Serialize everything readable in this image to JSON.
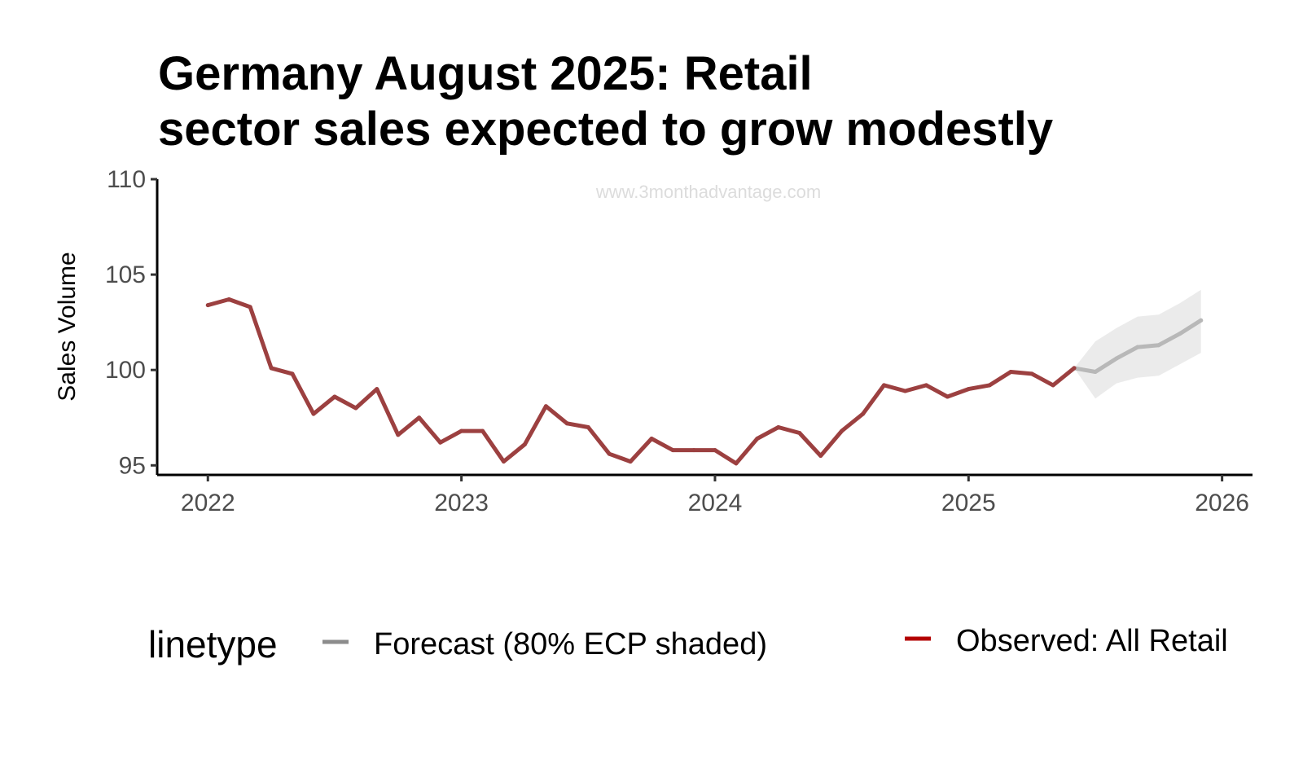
{
  "chart_data": {
    "type": "line",
    "title_lines": [
      "Germany August 2025: Retail",
      "sector sales expected to grow modestly"
    ],
    "ylabel": "Sales Volume",
    "xlabel": "",
    "watermark": "www.3monthadvantage.com",
    "ylim": [
      94.5,
      110
    ],
    "yticks": [
      95,
      100,
      105,
      110
    ],
    "xticks": [
      {
        "label": "2022",
        "value": 2022.0
      },
      {
        "label": "2023",
        "value": 2023.0
      },
      {
        "label": "2024",
        "value": 2024.0
      },
      {
        "label": "2025",
        "value": 2025.0
      },
      {
        "label": "2026",
        "value": 2026.0
      }
    ],
    "x_axis_unit": "year",
    "legend": {
      "title": "linetype",
      "entries": [
        {
          "label": "Forecast (80% ECP shaded)",
          "color": "#8c8c8c"
        },
        {
          "label": "Observed: All Retail",
          "color": "#b30000"
        }
      ]
    },
    "series": [
      {
        "name": "Observed: All Retail",
        "color": "#9c4040",
        "x": [
          "2022-01",
          "2022-02",
          "2022-03",
          "2022-04",
          "2022-05",
          "2022-06",
          "2022-07",
          "2022-08",
          "2022-09",
          "2022-10",
          "2022-11",
          "2022-12",
          "2023-01",
          "2023-02",
          "2023-03",
          "2023-04",
          "2023-05",
          "2023-06",
          "2023-07",
          "2023-08",
          "2023-09",
          "2023-10",
          "2023-11",
          "2023-12",
          "2024-01",
          "2024-02",
          "2024-03",
          "2024-04",
          "2024-05",
          "2024-06",
          "2024-07",
          "2024-08",
          "2024-09",
          "2024-10",
          "2024-11",
          "2024-12",
          "2025-01",
          "2025-02",
          "2025-03",
          "2025-04",
          "2025-05",
          "2025-06"
        ],
        "values": [
          103.4,
          103.7,
          103.3,
          100.1,
          99.8,
          97.7,
          98.6,
          98.0,
          99.0,
          96.6,
          97.5,
          96.2,
          96.8,
          96.8,
          95.2,
          96.1,
          98.1,
          97.2,
          97.0,
          95.6,
          95.2,
          96.4,
          95.8,
          95.8,
          95.8,
          95.1,
          96.4,
          97.0,
          96.7,
          95.5,
          96.8,
          97.7,
          99.2,
          98.9,
          99.2,
          98.6,
          99.0,
          99.2,
          99.9,
          99.8,
          99.2,
          100.1
        ]
      },
      {
        "name": "Forecast (80% ECP shaded)",
        "color": "#b8b8b8",
        "x": [
          "2025-06",
          "2025-07",
          "2025-08",
          "2025-09",
          "2025-10",
          "2025-11",
          "2025-12"
        ],
        "values": [
          100.1,
          99.9,
          100.6,
          101.2,
          101.3,
          101.9,
          102.6
        ],
        "lower": [
          100.1,
          98.5,
          99.3,
          99.6,
          99.7,
          100.3,
          100.9
        ],
        "upper": [
          100.1,
          101.5,
          102.2,
          102.8,
          102.9,
          103.5,
          104.2
        ],
        "band_color": "#ebebeb"
      }
    ]
  }
}
